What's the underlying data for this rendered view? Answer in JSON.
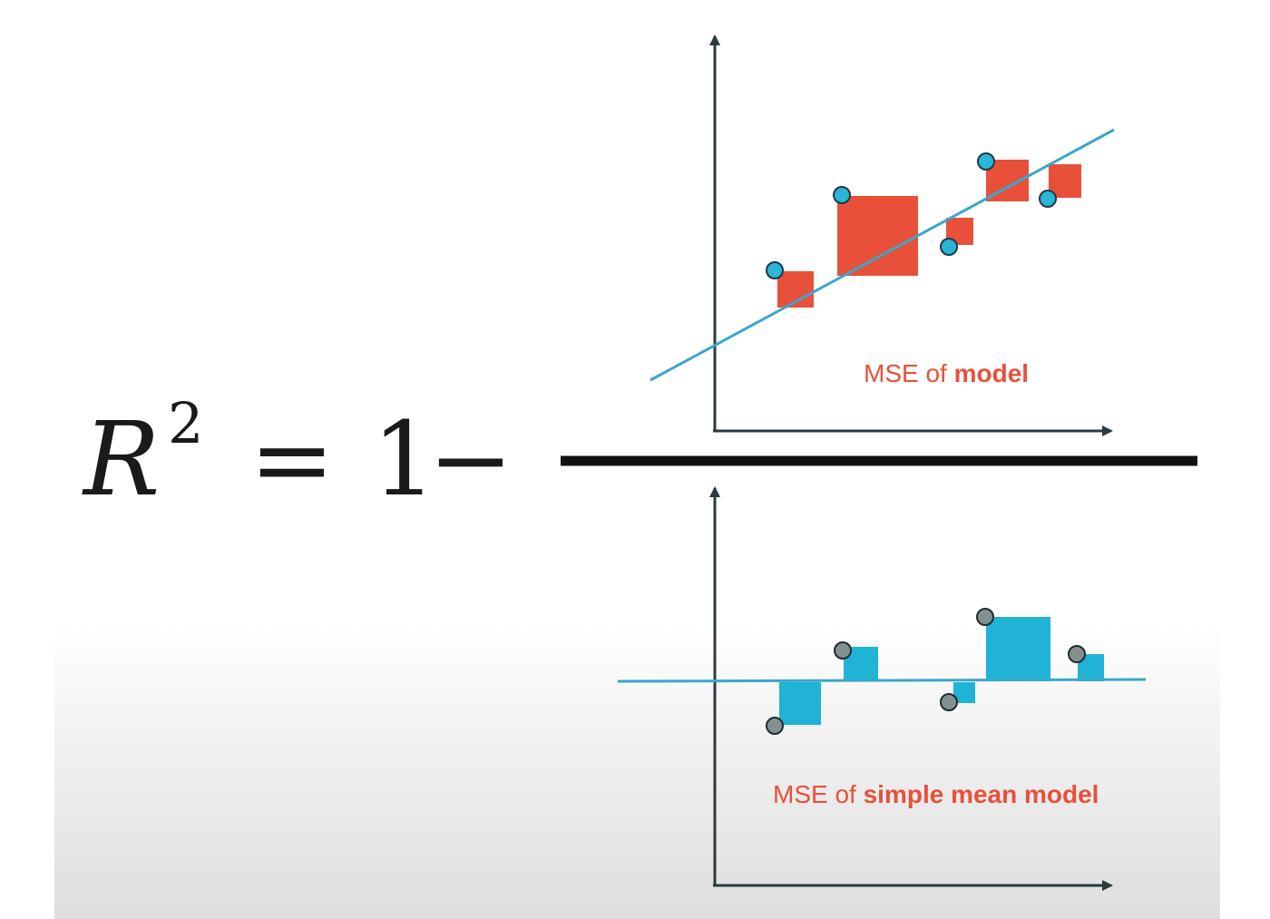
{
  "formula": {
    "variable": "R",
    "exponent": "2",
    "equals": "=",
    "one": "1",
    "minus": "−"
  },
  "numerator": {
    "caption_prefix": "MSE of ",
    "caption_emphasis": "model",
    "caption_color": "#e8503a",
    "point_color": "#2bb5d6",
    "line_color": "#3aa7c9",
    "residual_square_color": "#e8503a"
  },
  "denominator": {
    "caption_prefix": "MSE of ",
    "caption_emphasis": "simple mean model",
    "caption_color": "#e8503a",
    "point_color": "#848f8f",
    "line_color": "#3aa7c9",
    "residual_square_color": "#1fb3d6"
  },
  "colors": {
    "axis": "#2b3a3f",
    "fraction_bar": "#111111"
  }
}
